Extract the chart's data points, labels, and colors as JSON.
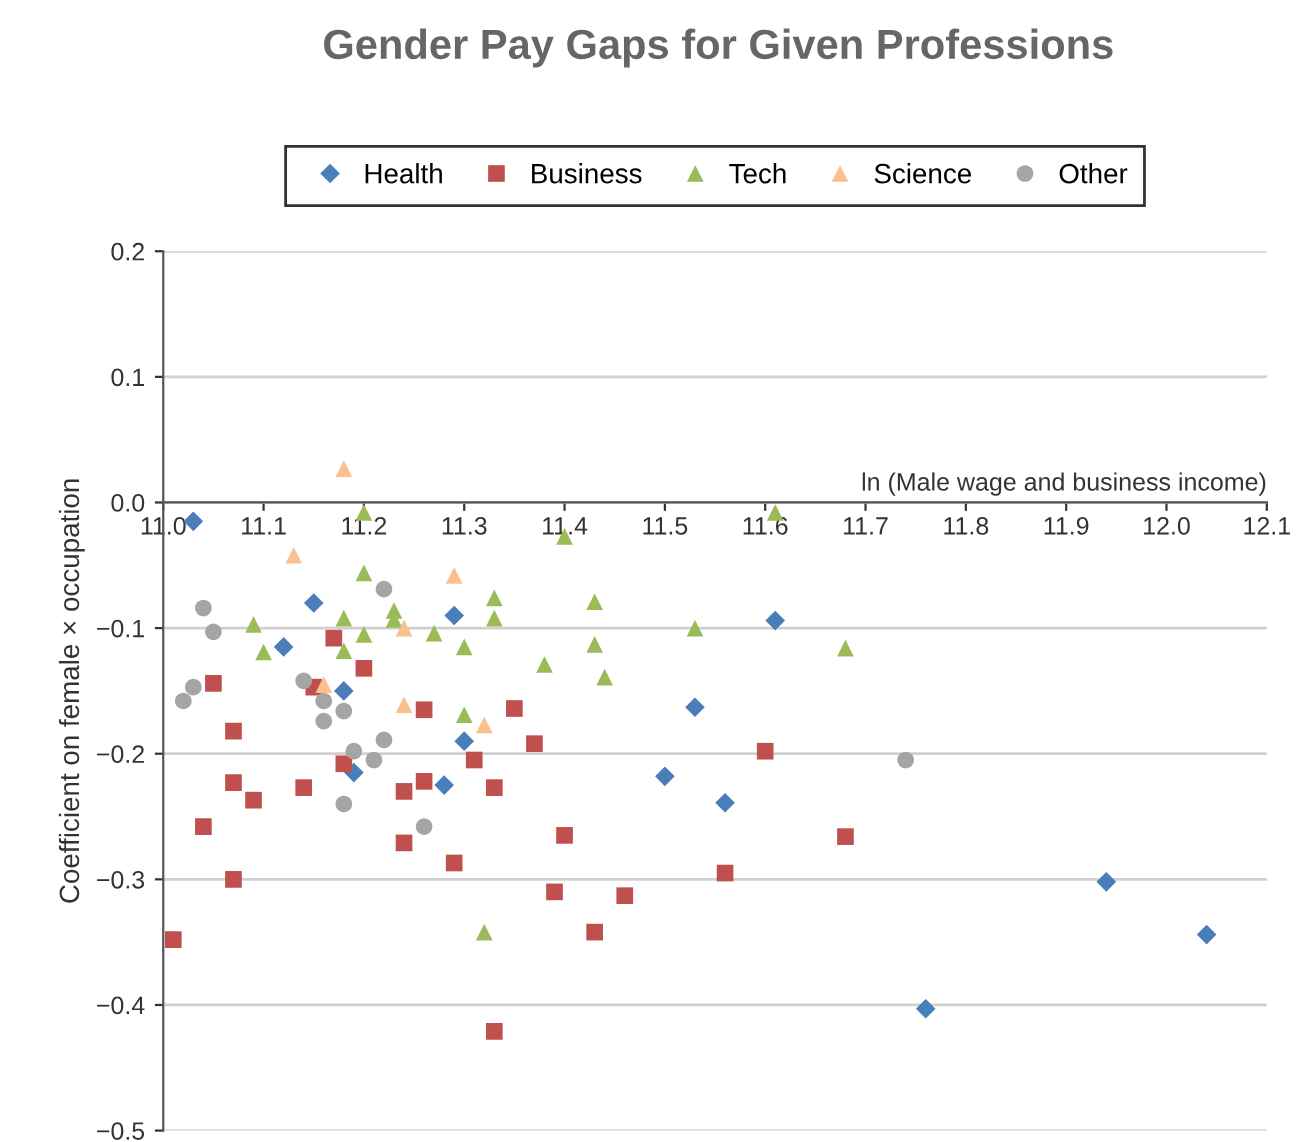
{
  "chart_data": {
    "type": "scatter",
    "title": "Gender Pay Gaps for Given Professions",
    "xlabel": "ln (Male wage and business income)",
    "ylabel": "Coefficient on female × occupation",
    "xlim": [
      11.0,
      12.1
    ],
    "xticks": [
      {
        "value": 11.0,
        "label": "11.0"
      },
      11.1,
      11.2,
      11.3,
      11.4,
      11.5,
      11.6,
      11.7,
      11.8,
      11.9,
      {
        "value": 12.0,
        "label": "12.0"
      },
      12.1
    ],
    "ylim": [
      -0.5,
      0.2
    ],
    "yticks": [
      0.2,
      0.1,
      {
        "value": 0.0,
        "label": "0.0"
      },
      {
        "value": -0.1,
        "label": "−0.1"
      },
      {
        "value": -0.2,
        "label": "−0.2"
      },
      {
        "value": -0.3,
        "label": "−0.3"
      },
      {
        "value": -0.4,
        "label": "−0.4"
      },
      {
        "value": -0.5,
        "label": "−0.5"
      }
    ],
    "grid": "y",
    "legend": "top",
    "series": [
      {
        "name": "Health",
        "color": "#4a7ebb",
        "marker": "diamond",
        "x": [
          11.03,
          11.15,
          11.12,
          11.18,
          11.19,
          11.29,
          11.28,
          11.3,
          11.5,
          11.53,
          11.56,
          11.61,
          11.76,
          11.94,
          12.04
        ],
        "values": [
          -0.015,
          -0.08,
          -0.115,
          -0.15,
          -0.215,
          -0.09,
          -0.225,
          -0.19,
          -0.218,
          -0.163,
          -0.239,
          -0.094,
          -0.403,
          -0.302,
          -0.344
        ]
      },
      {
        "name": "Business",
        "color": "#c0504d",
        "marker": "square",
        "x": [
          11.01,
          11.04,
          11.05,
          11.07,
          11.07,
          11.07,
          11.09,
          11.14,
          11.15,
          11.18,
          11.2,
          11.17,
          11.24,
          11.24,
          11.26,
          11.26,
          11.29,
          11.31,
          11.33,
          11.33,
          11.35,
          11.37,
          11.4,
          11.39,
          11.43,
          11.46,
          11.6,
          11.68,
          11.56
        ],
        "values": [
          -0.348,
          -0.258,
          -0.144,
          -0.182,
          -0.223,
          -0.3,
          -0.237,
          -0.227,
          -0.147,
          -0.208,
          -0.132,
          -0.108,
          -0.23,
          -0.271,
          -0.222,
          -0.165,
          -0.287,
          -0.205,
          -0.227,
          -0.421,
          -0.164,
          -0.192,
          -0.265,
          -0.31,
          -0.342,
          -0.313,
          -0.198,
          -0.266,
          -0.295
        ]
      },
      {
        "name": "Tech",
        "color": "#9bbb59",
        "marker": "triangle",
        "x": [
          11.2,
          11.09,
          11.1,
          11.2,
          11.18,
          11.23,
          11.23,
          11.2,
          11.18,
          11.27,
          11.3,
          11.33,
          11.33,
          11.4,
          11.38,
          11.43,
          11.43,
          11.44,
          11.3,
          11.32,
          11.53,
          11.61,
          11.68
        ],
        "values": [
          -0.008,
          -0.097,
          -0.119,
          -0.056,
          -0.092,
          -0.086,
          -0.093,
          -0.105,
          -0.118,
          -0.104,
          -0.115,
          -0.076,
          -0.092,
          -0.027,
          -0.129,
          -0.079,
          -0.113,
          -0.139,
          -0.169,
          -0.342,
          -0.1,
          -0.008,
          -0.116
        ]
      },
      {
        "name": "Science",
        "color": "#fac090",
        "marker": "triangle",
        "x": [
          11.18,
          11.13,
          11.29,
          11.24,
          11.16,
          11.24,
          11.32
        ],
        "values": [
          0.027,
          -0.042,
          -0.058,
          -0.1,
          -0.145,
          -0.161,
          -0.177
        ]
      },
      {
        "name": "Other",
        "color": "#a5a5a5",
        "marker": "circle",
        "x": [
          11.04,
          11.05,
          11.22,
          11.02,
          11.03,
          11.14,
          11.16,
          11.16,
          11.18,
          11.19,
          11.21,
          11.22,
          11.18,
          11.26,
          11.74
        ],
        "values": [
          -0.084,
          -0.103,
          -0.069,
          -0.158,
          -0.147,
          -0.142,
          -0.158,
          -0.174,
          -0.166,
          -0.198,
          -0.205,
          -0.189,
          -0.24,
          -0.258,
          -0.205
        ]
      }
    ]
  }
}
